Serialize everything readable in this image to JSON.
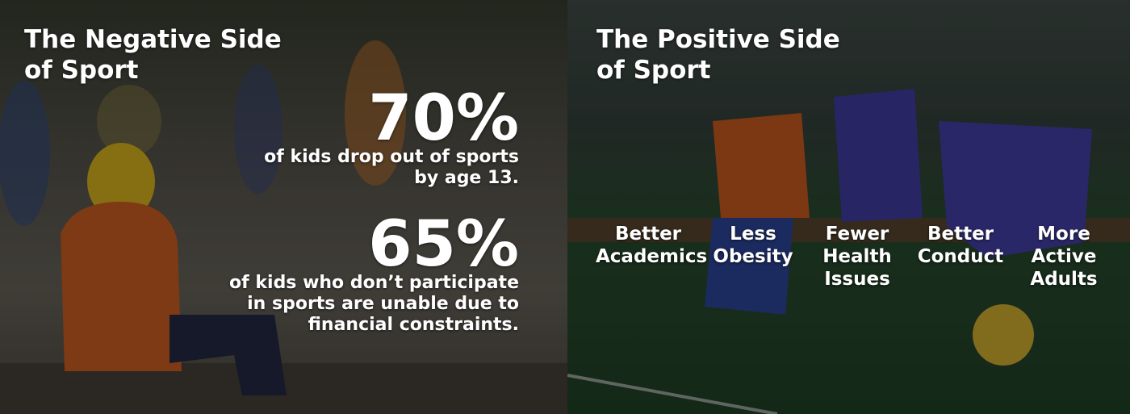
{
  "left": {
    "title_lines": [
      "The Negative Side",
      "of Sport"
    ],
    "stats": [
      {
        "figure": "70%",
        "lines": [
          "of kids drop out of sports",
          "by age 13."
        ]
      },
      {
        "figure": "65%",
        "lines": [
          "of kids who don’t participate",
          "in sports are unable due to",
          "financial constraints."
        ]
      }
    ]
  },
  "right": {
    "title_lines": [
      "The Positive Side",
      "of Sport"
    ],
    "benefits": [
      {
        "lines": [
          "Better",
          "Academics"
        ]
      },
      {
        "lines": [
          "Less",
          "Obesity"
        ]
      },
      {
        "lines": [
          "Fewer",
          "Health",
          "Issues"
        ]
      },
      {
        "lines": [
          "Better",
          "Conduct"
        ]
      },
      {
        "lines": [
          "More",
          "Active",
          "Adults"
        ]
      }
    ]
  }
}
